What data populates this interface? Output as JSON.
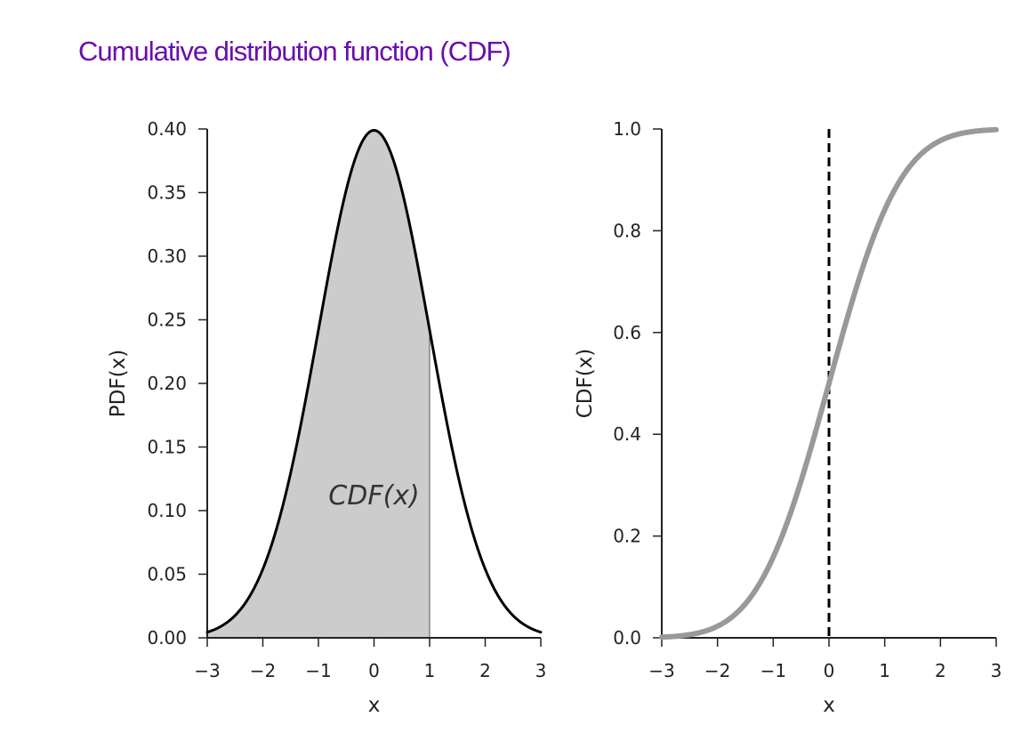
{
  "title": "Cumulative distribution function (CDF)",
  "colors": {
    "title": "#6a0dad",
    "pdf_line": "#000000",
    "pdf_fill": "#cccccc",
    "cdf_line": "#999999",
    "marker_line": "#000000"
  },
  "chart_data": [
    {
      "type": "area",
      "xlabel": "x",
      "ylabel": "PDF(x)",
      "xlim": [
        -3,
        3
      ],
      "ylim": [
        0,
        0.4
      ],
      "xticks": [
        -3,
        -2,
        -1,
        0,
        1,
        2,
        3
      ],
      "xtick_labels": [
        "−3",
        "−2",
        "−1",
        "0",
        "1",
        "2",
        "3"
      ],
      "yticks": [
        0,
        0.05,
        0.1,
        0.15,
        0.2,
        0.25,
        0.3,
        0.35,
        0.4
      ],
      "ytick_labels": [
        "0.00",
        "0.05",
        "0.10",
        "0.15",
        "0.20",
        "0.25",
        "0.30",
        "0.35",
        "0.40"
      ],
      "x": [
        -3,
        -2.5,
        -2,
        -1.5,
        -1,
        -0.5,
        0,
        0.5,
        1,
        1.5,
        2,
        2.5,
        3
      ],
      "values": [
        0.0044,
        0.0175,
        0.054,
        0.1295,
        0.242,
        0.3521,
        0.3989,
        0.3521,
        0.242,
        0.1295,
        0.054,
        0.0175,
        0.0044
      ],
      "shaded_range": [
        -3,
        1
      ],
      "annotation": {
        "text": "CDF(x)",
        "x": 0,
        "y": 0.105
      },
      "grid": false
    },
    {
      "type": "line",
      "xlabel": "x",
      "ylabel": "CDF(x)",
      "xlim": [
        -3,
        3
      ],
      "ylim": [
        0,
        1
      ],
      "xticks": [
        -3,
        -2,
        -1,
        0,
        1,
        2,
        3
      ],
      "xtick_labels": [
        "−3",
        "−2",
        "−1",
        "0",
        "1",
        "2",
        "3"
      ],
      "yticks": [
        0,
        0.2,
        0.4,
        0.6,
        0.8,
        1
      ],
      "ytick_labels": [
        "0.0",
        "0.2",
        "0.4",
        "0.6",
        "0.8",
        "1.0"
      ],
      "x": [
        -3,
        -2.5,
        -2,
        -1.5,
        -1,
        -0.5,
        0,
        0.5,
        1,
        1.5,
        2,
        2.5,
        3
      ],
      "values": [
        0.0013,
        0.0062,
        0.0228,
        0.0668,
        0.1587,
        0.3085,
        0.5,
        0.6915,
        0.8413,
        0.9332,
        0.9772,
        0.9938,
        0.9987
      ],
      "vline_x": 0,
      "grid": false
    }
  ]
}
